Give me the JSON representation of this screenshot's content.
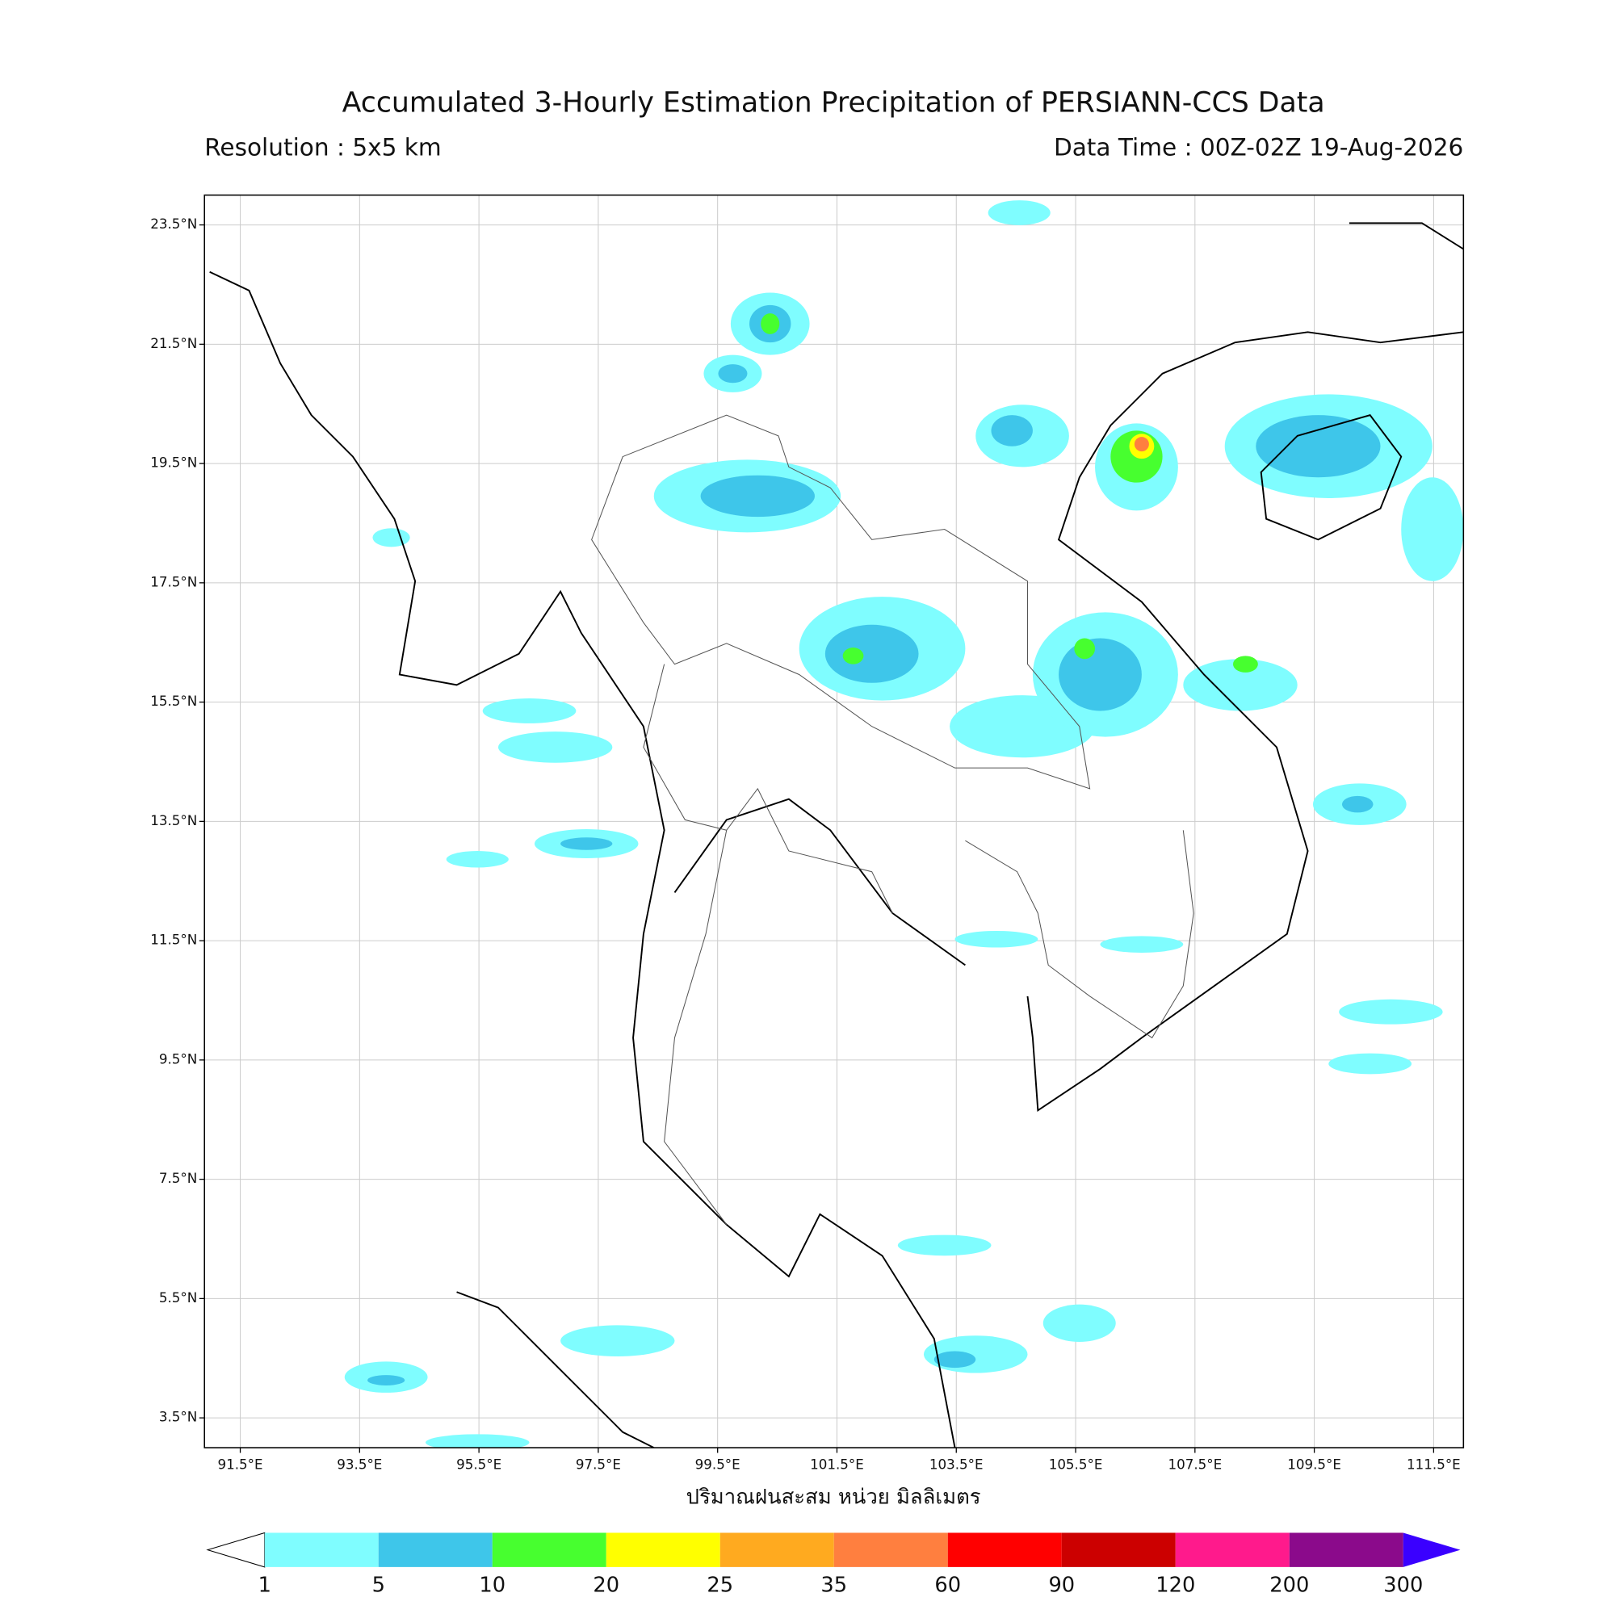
{
  "header": {
    "title": "Accumulated 3-Hourly Estimation Precipitation of PERSIANN-CCS Data",
    "resolution": "Resolution : 5x5 km",
    "data_time": "Data Time : 00Z-02Z 19-Aug-2026"
  },
  "map": {
    "xlim": [
      90.9,
      112.0
    ],
    "ylim": [
      3.0,
      24.0
    ],
    "grid": true,
    "xticks": [
      {
        "value": 91.5,
        "label": "91.5°E"
      },
      {
        "value": 93.5,
        "label": "93.5°E"
      },
      {
        "value": 95.5,
        "label": "95.5°E"
      },
      {
        "value": 97.5,
        "label": "97.5°E"
      },
      {
        "value": 99.5,
        "label": "99.5°E"
      },
      {
        "value": 101.5,
        "label": "101.5°E"
      },
      {
        "value": 103.5,
        "label": "103.5°E"
      },
      {
        "value": 105.5,
        "label": "105.5°E"
      },
      {
        "value": 107.5,
        "label": "107.5°E"
      },
      {
        "value": 109.5,
        "label": "109.5°E"
      },
      {
        "value": 111.5,
        "label": "111.5°E"
      }
    ],
    "yticks": [
      {
        "value": 3.5,
        "label": "3.5°N"
      },
      {
        "value": 5.5,
        "label": "5.5°N"
      },
      {
        "value": 7.5,
        "label": "7.5°N"
      },
      {
        "value": 9.5,
        "label": "9.5°N"
      },
      {
        "value": 11.5,
        "label": "11.5°N"
      },
      {
        "value": 13.5,
        "label": "13.5°N"
      },
      {
        "value": 15.5,
        "label": "15.5°N"
      },
      {
        "value": 17.5,
        "label": "17.5°N"
      },
      {
        "value": 19.5,
        "label": "19.5°N"
      },
      {
        "value": 21.5,
        "label": "21.5°N"
      },
      {
        "value": 23.5,
        "label": "23.5°N"
      }
    ],
    "xlabel": "ปริมาณฝนสะสม หน่วย มิลลิเมตร"
  },
  "colorbar": {
    "levels": [
      1,
      5,
      10,
      20,
      25,
      35,
      60,
      90,
      120,
      200,
      300
    ],
    "colors": [
      "#ffffff",
      "#7ffdff",
      "#3ec6ea",
      "#47ff2f",
      "#ffff00",
      "#ffaa1f",
      "#ff7f3f",
      "#ff0000",
      "#cc0000",
      "#ff1a8c",
      "#8b0a8b",
      "#3a00ff"
    ]
  }
}
